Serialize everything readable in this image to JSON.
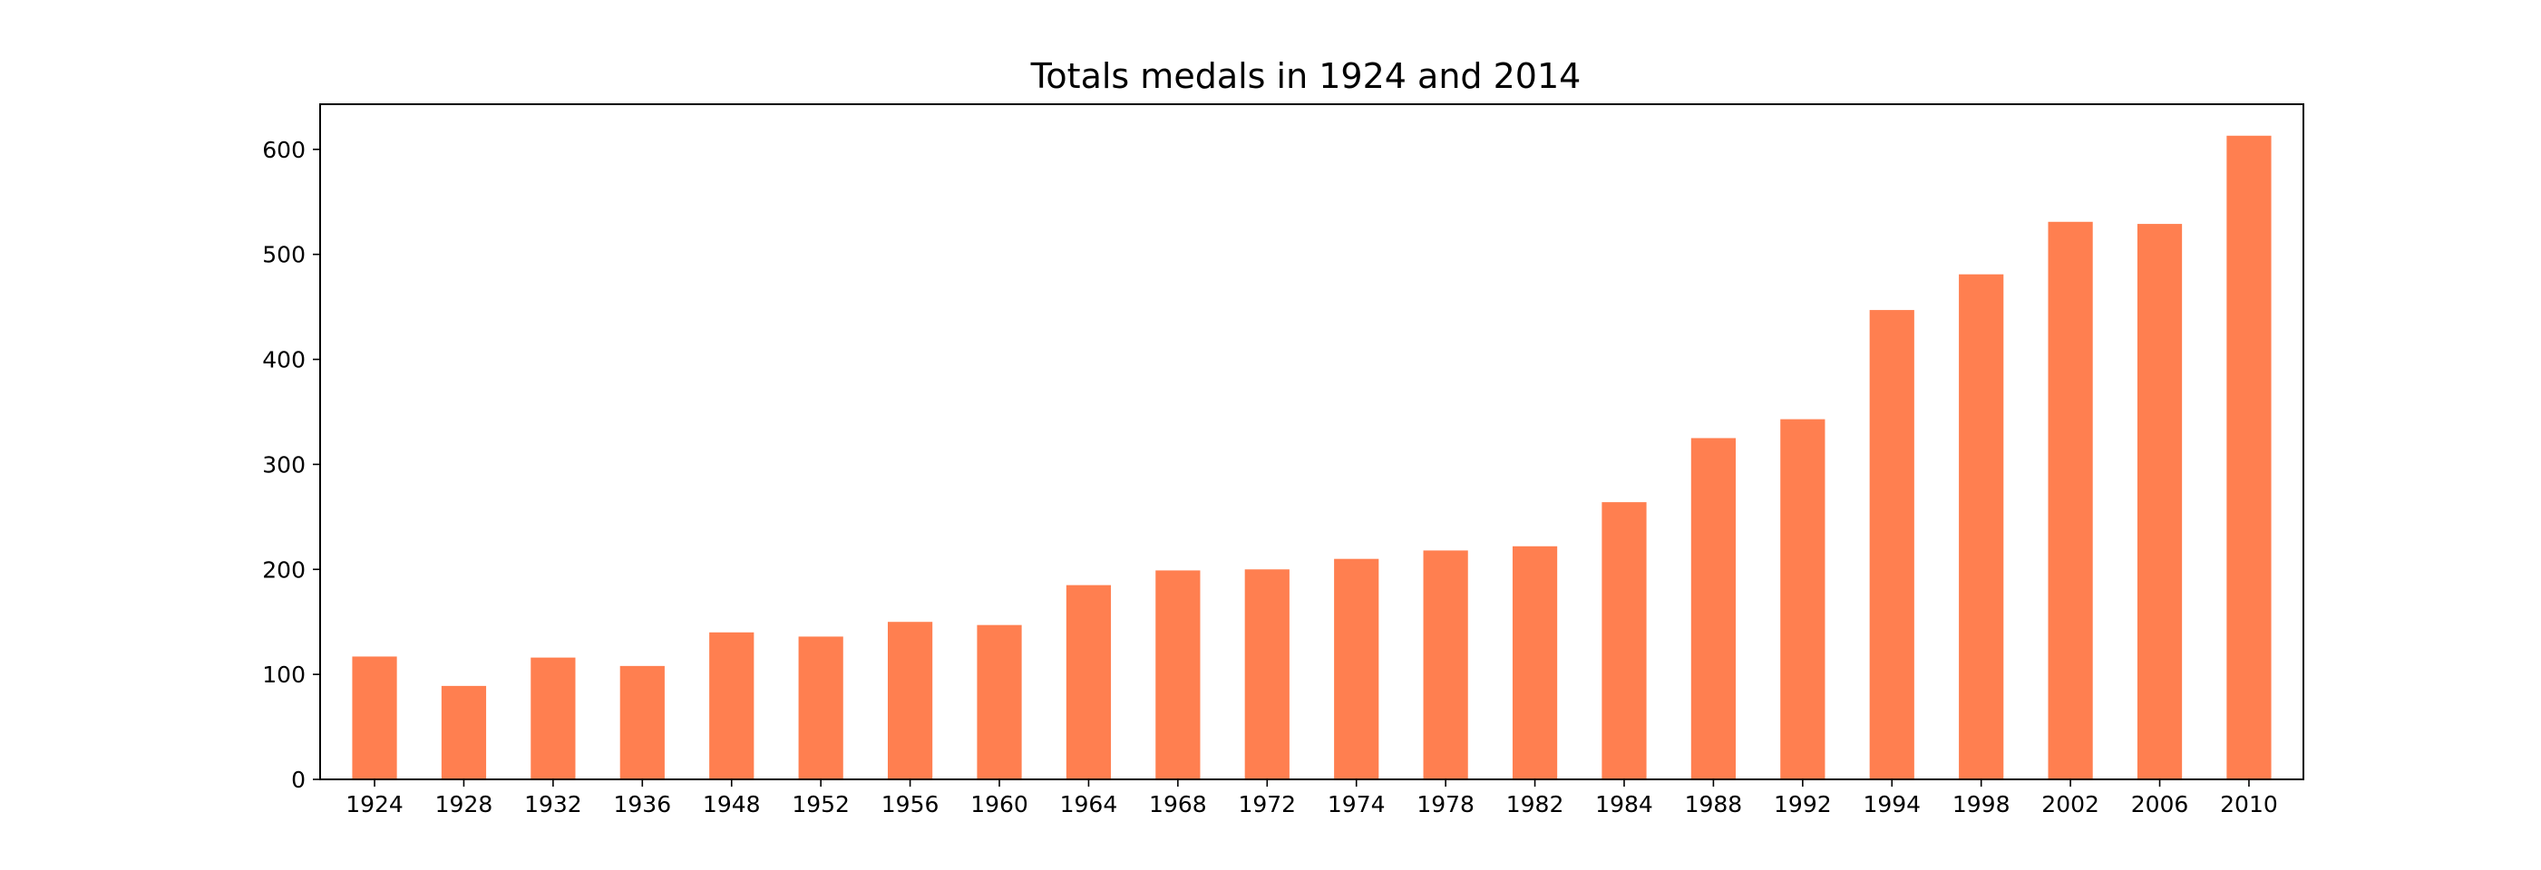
{
  "chart_data": {
    "type": "bar",
    "title": "Totals medals in 1924 and 2014",
    "xlabel": "",
    "ylabel": "",
    "categories": [
      "1924",
      "1928",
      "1932",
      "1936",
      "1948",
      "1952",
      "1956",
      "1960",
      "1964",
      "1968",
      "1972",
      "1974",
      "1978",
      "1982",
      "1984",
      "1988",
      "1992",
      "1994",
      "1998",
      "2002",
      "2006",
      "2010"
    ],
    "values": [
      117,
      89,
      116,
      108,
      140,
      136,
      150,
      147,
      185,
      199,
      200,
      210,
      218,
      222,
      264,
      325,
      343,
      447,
      481,
      531,
      529,
      613
    ],
    "ylim": [
      0,
      643
    ],
    "yticks": [
      0,
      100,
      200,
      300,
      400,
      500,
      600
    ],
    "bar_color": "#ff7f50",
    "grid": false,
    "legend": "none"
  }
}
